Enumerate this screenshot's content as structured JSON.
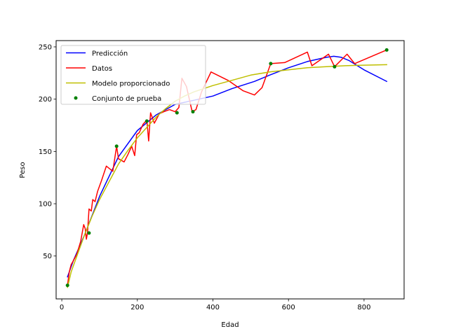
{
  "chart_data": {
    "type": "line",
    "xlabel": "Edad",
    "ylabel": "Peso",
    "xlim": [
      -15,
      906
    ],
    "ylim": [
      9,
      256
    ],
    "xticks": [
      0,
      200,
      400,
      600,
      800
    ],
    "yticks": [
      50,
      100,
      150,
      200,
      250
    ],
    "grid": false,
    "legend_position": "top-left",
    "series": [
      {
        "name": "Predicción",
        "kind": "line",
        "color": "#0000ff",
        "points": [
          [
            15,
            30
          ],
          [
            30,
            45
          ],
          [
            60,
            70
          ],
          [
            100,
            107
          ],
          [
            150,
            145
          ],
          [
            200,
            170
          ],
          [
            250,
            185
          ],
          [
            300,
            195
          ],
          [
            350,
            199
          ],
          [
            400,
            203
          ],
          [
            450,
            210
          ],
          [
            510,
            217
          ],
          [
            550,
            223
          ],
          [
            600,
            230
          ],
          [
            650,
            236
          ],
          [
            700,
            240
          ],
          [
            720,
            241
          ],
          [
            740,
            240
          ],
          [
            760,
            237
          ],
          [
            800,
            228
          ],
          [
            860,
            217
          ]
        ]
      },
      {
        "name": "Datos",
        "kind": "line",
        "color": "#ff0000",
        "points": [
          [
            15,
            22
          ],
          [
            20,
            35
          ],
          [
            25,
            42
          ],
          [
            30,
            45
          ],
          [
            40,
            52
          ],
          [
            50,
            64
          ],
          [
            58,
            80
          ],
          [
            62,
            76
          ],
          [
            65,
            66
          ],
          [
            68,
            72
          ],
          [
            72,
            95
          ],
          [
            78,
            93
          ],
          [
            82,
            104
          ],
          [
            88,
            102
          ],
          [
            95,
            112
          ],
          [
            105,
            122
          ],
          [
            118,
            136
          ],
          [
            135,
            131
          ],
          [
            145,
            155
          ],
          [
            150,
            143
          ],
          [
            165,
            140
          ],
          [
            175,
            147
          ],
          [
            185,
            155
          ],
          [
            193,
            146
          ],
          [
            198,
            166
          ],
          [
            205,
            168
          ],
          [
            215,
            176
          ],
          [
            225,
            180
          ],
          [
            230,
            160
          ],
          [
            235,
            187
          ],
          [
            245,
            177
          ],
          [
            258,
            186
          ],
          [
            270,
            188
          ],
          [
            285,
            190
          ],
          [
            300,
            188
          ],
          [
            310,
            192
          ],
          [
            318,
            220
          ],
          [
            330,
            212
          ],
          [
            345,
            188
          ],
          [
            355,
            190
          ],
          [
            370,
            207
          ],
          [
            395,
            226
          ],
          [
            440,
            218
          ],
          [
            480,
            208
          ],
          [
            510,
            204
          ],
          [
            530,
            211
          ],
          [
            553,
            234
          ],
          [
            590,
            235
          ],
          [
            650,
            245
          ],
          [
            662,
            232
          ],
          [
            706,
            243
          ],
          [
            722,
            231
          ],
          [
            755,
            243
          ],
          [
            775,
            234
          ],
          [
            860,
            247
          ]
        ]
      },
      {
        "name": "Modelo proporcionado",
        "kind": "line",
        "color": "#bfbf00",
        "points": [
          [
            15,
            20
          ],
          [
            25,
            35
          ],
          [
            40,
            50
          ],
          [
            60,
            70
          ],
          [
            80,
            88
          ],
          [
            100,
            104
          ],
          [
            125,
            121
          ],
          [
            150,
            138
          ],
          [
            175,
            151
          ],
          [
            200,
            163
          ],
          [
            225,
            173
          ],
          [
            250,
            183
          ],
          [
            275,
            191
          ],
          [
            300,
            198
          ],
          [
            325,
            203
          ],
          [
            350,
            207
          ],
          [
            400,
            213
          ],
          [
            450,
            218
          ],
          [
            500,
            223
          ],
          [
            550,
            226
          ],
          [
            600,
            228
          ],
          [
            650,
            230
          ],
          [
            700,
            231
          ],
          [
            750,
            232
          ],
          [
            800,
            232.5
          ],
          [
            860,
            233
          ]
        ]
      },
      {
        "name": "Conjunto de prueba",
        "kind": "scatter",
        "color": "#008000",
        "points": [
          [
            15,
            22
          ],
          [
            72,
            72
          ],
          [
            145,
            155
          ],
          [
            225,
            179
          ],
          [
            305,
            187
          ],
          [
            347,
            188
          ],
          [
            553,
            234
          ],
          [
            722,
            231
          ],
          [
            860,
            247
          ]
        ]
      }
    ]
  }
}
